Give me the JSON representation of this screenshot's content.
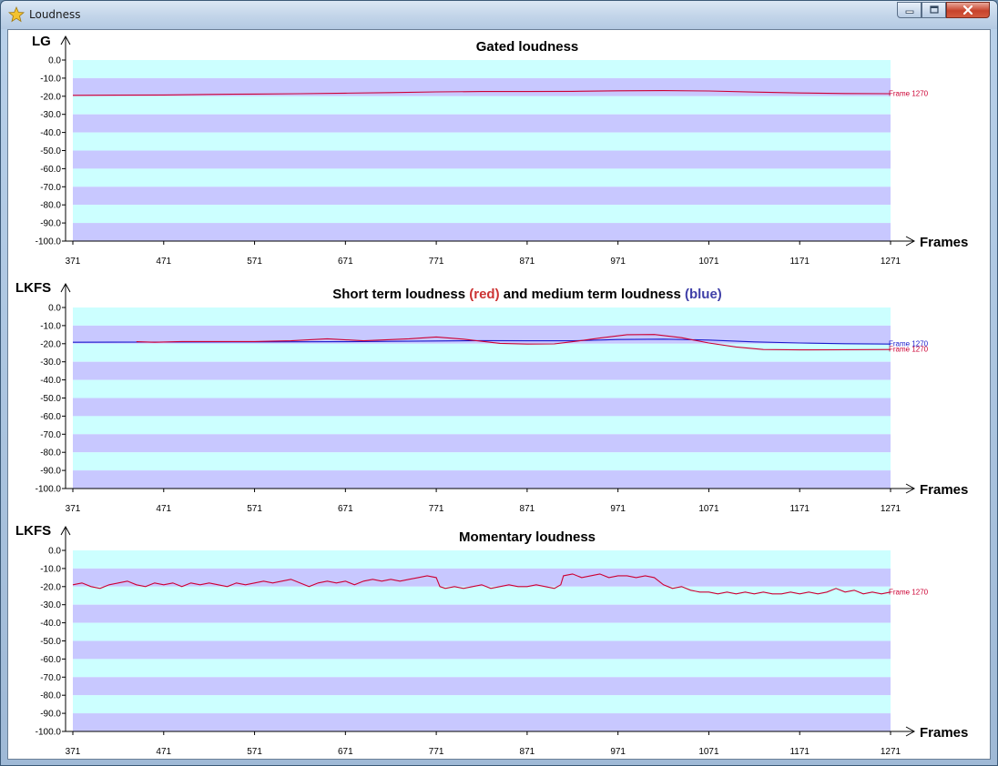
{
  "window": {
    "title": "Loudness",
    "title_icon": "star-icon",
    "buttons": [
      "minimize-icon",
      "maximize-icon",
      "close-icon"
    ]
  },
  "colors": {
    "band_cyan": "#ccffff",
    "band_lavender": "#c8c8ff",
    "short_term_red": "#cc0033",
    "medium_term_blue": "#1a1acc",
    "title_red": "#cc3333",
    "title_blue": "#4040a8",
    "label_red": "#cc0033",
    "label_blue": "#1a1acc"
  },
  "chart_data": [
    {
      "type": "line",
      "title": "Gated loudness",
      "ylabel": "LG",
      "xlabel": "Frames",
      "ylim": [
        -100,
        0
      ],
      "xlim": [
        371,
        1271
      ],
      "yticks": [
        "0.0",
        "-10.0",
        "-20.0",
        "-30.0",
        "-40.0",
        "-50.0",
        "-60.0",
        "-70.0",
        "-80.0",
        "-90.0",
        "-100.0"
      ],
      "xticks": [
        "371",
        "471",
        "571",
        "671",
        "771",
        "871",
        "971",
        "1071",
        "1171",
        "1271"
      ],
      "series": [
        {
          "color": "#cc0033",
          "end_label": "Frame 1270",
          "points": [
            [
              371,
              -19.5
            ],
            [
              471,
              -19.3
            ],
            [
              521,
              -19.0
            ],
            [
              571,
              -18.8
            ],
            [
              621,
              -18.6
            ],
            [
              671,
              -18.3
            ],
            [
              721,
              -18.0
            ],
            [
              771,
              -17.6
            ],
            [
              821,
              -17.4
            ],
            [
              871,
              -17.4
            ],
            [
              921,
              -17.3
            ],
            [
              971,
              -17.0
            ],
            [
              1021,
              -16.9
            ],
            [
              1071,
              -17.1
            ],
            [
              1121,
              -17.7
            ],
            [
              1171,
              -18.2
            ],
            [
              1221,
              -18.5
            ],
            [
              1271,
              -18.6
            ]
          ]
        }
      ]
    },
    {
      "type": "line",
      "title_parts": [
        {
          "text": "Short term loudness ",
          "color": "#000000"
        },
        {
          "text": "(red)",
          "color": "#cc3333"
        },
        {
          "text": " and medium term loudness ",
          "color": "#000000"
        },
        {
          "text": "(blue)",
          "color": "#4040a8"
        }
      ],
      "ylabel": "LKFS",
      "xlabel": "Frames",
      "ylim": [
        -100,
        0
      ],
      "xlim": [
        371,
        1271
      ],
      "yticks": [
        "0.0",
        "-10.0",
        "-20.0",
        "-30.0",
        "-40.0",
        "-50.0",
        "-60.0",
        "-70.0",
        "-80.0",
        "-90.0",
        "-100.0"
      ],
      "xticks": [
        "371",
        "471",
        "571",
        "671",
        "771",
        "871",
        "971",
        "1071",
        "1171",
        "1271"
      ],
      "series": [
        {
          "color": "#1a1acc",
          "end_label": "Frame 1270",
          "points": [
            [
              371,
              -19.2
            ],
            [
              471,
              -19.1
            ],
            [
              571,
              -19.0
            ],
            [
              671,
              -18.9
            ],
            [
              771,
              -18.5
            ],
            [
              821,
              -18.3
            ],
            [
              871,
              -18.4
            ],
            [
              921,
              -18.4
            ],
            [
              971,
              -17.7
            ],
            [
              1021,
              -17.5
            ],
            [
              1071,
              -18.0
            ],
            [
              1121,
              -19.0
            ],
            [
              1171,
              -19.6
            ],
            [
              1221,
              -20.0
            ],
            [
              1271,
              -20.2
            ]
          ]
        },
        {
          "color": "#cc0033",
          "end_label": "Frame 1270",
          "points": [
            [
              441,
              -18.9
            ],
            [
              461,
              -19.2
            ],
            [
              491,
              -18.8
            ],
            [
              571,
              -18.8
            ],
            [
              611,
              -18.4
            ],
            [
              651,
              -17.3
            ],
            [
              691,
              -18.4
            ],
            [
              741,
              -17.3
            ],
            [
              771,
              -16.3
            ],
            [
              801,
              -17.5
            ],
            [
              841,
              -19.8
            ],
            [
              871,
              -20.2
            ],
            [
              901,
              -20.1
            ],
            [
              921,
              -18.9
            ],
            [
              951,
              -16.9
            ],
            [
              981,
              -15.0
            ],
            [
              1011,
              -14.9
            ],
            [
              1041,
              -16.7
            ],
            [
              1071,
              -19.6
            ],
            [
              1101,
              -21.8
            ],
            [
              1131,
              -23.2
            ],
            [
              1171,
              -23.4
            ],
            [
              1221,
              -23.3
            ],
            [
              1271,
              -23.2
            ]
          ]
        }
      ]
    },
    {
      "type": "line",
      "title": "Momentary loudness",
      "ylabel": "LKFS",
      "xlabel": "Frames",
      "ylim": [
        -100,
        0
      ],
      "xlim": [
        371,
        1271
      ],
      "yticks": [
        "0.0",
        "-10.0",
        "-20.0",
        "-30.0",
        "-40.0",
        "-50.0",
        "-60.0",
        "-70.0",
        "-80.0",
        "-90.0",
        "-100.0"
      ],
      "xticks": [
        "371",
        "471",
        "571",
        "671",
        "771",
        "871",
        "971",
        "1071",
        "1171",
        "1271"
      ],
      "series": [
        {
          "color": "#cc0033",
          "end_label": "Frame 1270",
          "points": [
            [
              371,
              -19
            ],
            [
              381,
              -18
            ],
            [
              391,
              -20
            ],
            [
              401,
              -21
            ],
            [
              411,
              -19
            ],
            [
              421,
              -18
            ],
            [
              431,
              -17
            ],
            [
              441,
              -19
            ],
            [
              451,
              -20
            ],
            [
              461,
              -18
            ],
            [
              471,
              -19
            ],
            [
              481,
              -18
            ],
            [
              491,
              -20
            ],
            [
              501,
              -18
            ],
            [
              511,
              -19
            ],
            [
              521,
              -18
            ],
            [
              531,
              -19
            ],
            [
              541,
              -20
            ],
            [
              551,
              -18
            ],
            [
              561,
              -19
            ],
            [
              571,
              -18
            ],
            [
              581,
              -17
            ],
            [
              591,
              -18
            ],
            [
              601,
              -17
            ],
            [
              611,
              -16
            ],
            [
              621,
              -18
            ],
            [
              631,
              -20
            ],
            [
              641,
              -18
            ],
            [
              651,
              -17
            ],
            [
              661,
              -18
            ],
            [
              671,
              -17
            ],
            [
              681,
              -19
            ],
            [
              691,
              -17
            ],
            [
              701,
              -16
            ],
            [
              711,
              -17
            ],
            [
              721,
              -16
            ],
            [
              731,
              -17
            ],
            [
              741,
              -16
            ],
            [
              751,
              -15
            ],
            [
              761,
              -14
            ],
            [
              771,
              -15
            ],
            [
              775,
              -20
            ],
            [
              781,
              -21
            ],
            [
              791,
              -20
            ],
            [
              801,
              -21
            ],
            [
              811,
              -20
            ],
            [
              821,
              -19
            ],
            [
              831,
              -21
            ],
            [
              841,
              -20
            ],
            [
              851,
              -19
            ],
            [
              861,
              -20
            ],
            [
              871,
              -20
            ],
            [
              881,
              -19
            ],
            [
              891,
              -20
            ],
            [
              901,
              -21
            ],
            [
              908,
              -19
            ],
            [
              911,
              -14
            ],
            [
              921,
              -13
            ],
            [
              931,
              -15
            ],
            [
              941,
              -14
            ],
            [
              951,
              -13
            ],
            [
              961,
              -15
            ],
            [
              971,
              -14
            ],
            [
              981,
              -14
            ],
            [
              991,
              -15
            ],
            [
              1001,
              -14
            ],
            [
              1011,
              -15
            ],
            [
              1021,
              -19
            ],
            [
              1031,
              -21
            ],
            [
              1041,
              -20
            ],
            [
              1051,
              -22
            ],
            [
              1061,
              -23
            ],
            [
              1071,
              -23
            ],
            [
              1081,
              -24
            ],
            [
              1091,
              -23
            ],
            [
              1101,
              -24
            ],
            [
              1111,
              -23
            ],
            [
              1121,
              -24
            ],
            [
              1131,
              -23
            ],
            [
              1141,
              -24
            ],
            [
              1151,
              -24
            ],
            [
              1161,
              -23
            ],
            [
              1171,
              -24
            ],
            [
              1181,
              -23
            ],
            [
              1191,
              -24
            ],
            [
              1201,
              -23
            ],
            [
              1211,
              -21
            ],
            [
              1221,
              -23
            ],
            [
              1231,
              -22
            ],
            [
              1241,
              -24
            ],
            [
              1251,
              -23
            ],
            [
              1261,
              -24
            ],
            [
              1271,
              -23
            ]
          ]
        }
      ]
    }
  ]
}
